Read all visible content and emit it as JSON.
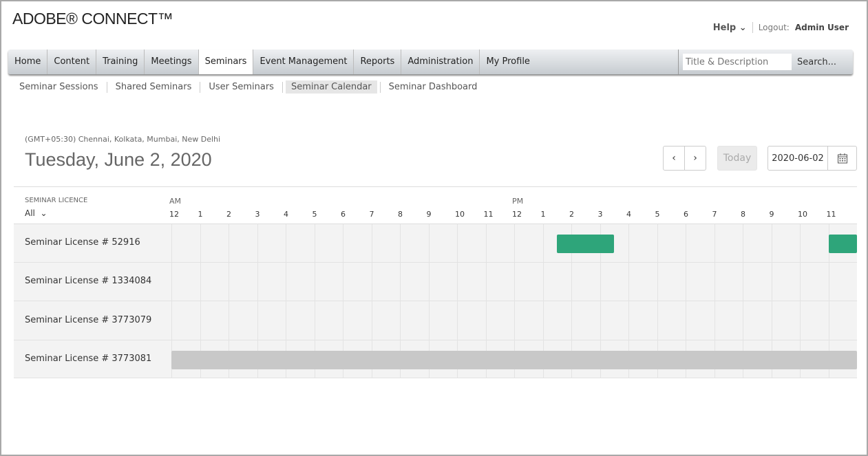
{
  "brand": "ADOBE® CONNECT™",
  "header": {
    "help": "Help",
    "logout": "Logout:",
    "user": "Admin User"
  },
  "nav": {
    "items": [
      "Home",
      "Content",
      "Training",
      "Meetings",
      "Seminars",
      "Event Management",
      "Reports",
      "Administration",
      "My Profile"
    ],
    "active": "Seminars",
    "search_placeholder": "Title & Description",
    "search_button": "Search..."
  },
  "subnav": {
    "items": [
      "Seminar Sessions",
      "Shared Seminars",
      "User Seminars",
      "Seminar Calendar",
      "Seminar Dashboard"
    ],
    "active": "Seminar Calendar"
  },
  "calendar": {
    "timezone": "(GMT+05:30) Chennai, Kolkata, Mumbai, New Delhi",
    "date_title": "Tuesday, June 2, 2020",
    "today_label": "Today",
    "date_value": "2020-06-02",
    "column_header": "SEMINAR LICENCE",
    "filter": "All",
    "am": "AM",
    "pm": "PM",
    "hours": [
      "12",
      "1",
      "2",
      "3",
      "4",
      "5",
      "6",
      "7",
      "8",
      "9",
      "10",
      "11",
      "12",
      "1",
      "2",
      "3",
      "4",
      "5",
      "6",
      "7",
      "8",
      "9",
      "10",
      "11"
    ],
    "colors": {
      "event": "#2ea57a",
      "blocked": "#c8c8c8"
    },
    "rows": [
      {
        "label": "Seminar License # 52916",
        "events": [
          {
            "start": 13.5,
            "end": 15.5,
            "kind": "event"
          },
          {
            "start": 23,
            "end": 24,
            "kind": "event"
          }
        ]
      },
      {
        "label": "Seminar License # 1334084",
        "events": []
      },
      {
        "label": "Seminar License # 3773079",
        "events": []
      },
      {
        "label": "Seminar License # 3773081",
        "events": [
          {
            "start": 0,
            "end": 24,
            "kind": "blocked"
          }
        ]
      }
    ]
  }
}
